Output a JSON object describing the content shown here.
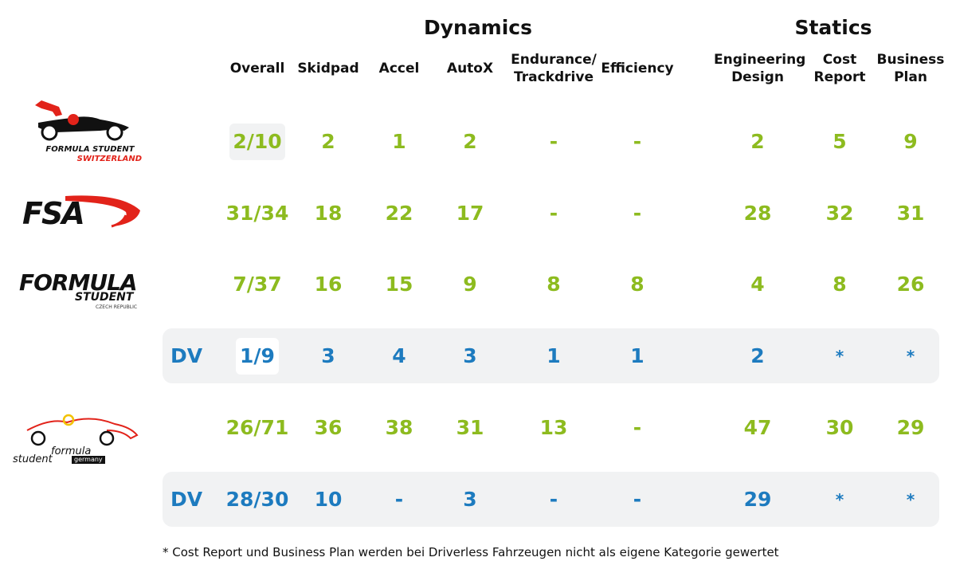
{
  "headers": {
    "dynamics": "Dynamics",
    "statics": "Statics",
    "columns": [
      "Overall",
      "Skidpad",
      "Accel",
      "AutoX",
      "Endurance/\nTrackdrive",
      "Efficiency",
      "Engineering\nDesign",
      "Cost\nReport",
      "Business\nPlan"
    ]
  },
  "rows": [
    {
      "event": "Formula Student Switzerland",
      "logo": "fs-switzerland-logo",
      "dv": "",
      "color": "green",
      "cells": [
        "2/10",
        "2",
        "1",
        "2",
        "-",
        "-",
        "2",
        "5",
        "9"
      ]
    },
    {
      "event": "FSA",
      "logo": "fsa-logo",
      "dv": "",
      "color": "green",
      "cells": [
        "31/34",
        "18",
        "22",
        "17",
        "-",
        "-",
        "28",
        "32",
        "31"
      ]
    },
    {
      "event": "Formula Student Czech Republic",
      "logo": "fs-czech-logo",
      "dv": "",
      "color": "green",
      "cells": [
        "7/37",
        "16",
        "15",
        "9",
        "8",
        "8",
        "4",
        "8",
        "26"
      ]
    },
    {
      "event": "Formula Student Czech Republic DV",
      "logo": "",
      "dv": "DV",
      "color": "blue",
      "cells": [
        "1/9",
        "3",
        "4",
        "3",
        "1",
        "1",
        "2",
        "*",
        "*"
      ]
    },
    {
      "event": "Formula Student Germany",
      "logo": "fs-germany-logo",
      "dv": "",
      "color": "green",
      "cells": [
        "26/71",
        "36",
        "38",
        "31",
        "13",
        "-",
        "47",
        "30",
        "29"
      ]
    },
    {
      "event": "Formula Student Germany DV",
      "logo": "",
      "dv": "DV",
      "color": "blue",
      "cells": [
        "28/30",
        "10",
        "-",
        "3",
        "-",
        "-",
        "29",
        "*",
        "*"
      ]
    }
  ],
  "logos": {
    "switzerland": {
      "line1": "FORMULA STUDENT",
      "line2": "SWITZERLAND"
    },
    "fsa": {
      "text": "FSA"
    },
    "czech": {
      "line1": "FORMULA",
      "line2": "STUDENT",
      "line3": "CZECH REPUBLIC"
    },
    "germany": {
      "line1": "formula",
      "line2": "student",
      "line3": "germany"
    }
  },
  "colors": {
    "green": "#8dbb1f",
    "blue": "#1d7bbf",
    "row_bg": "#f1f2f3",
    "overall_bg": "#f1f2f3"
  },
  "footnote": "* Cost Report und Business Plan werden bei Driverless Fahrzeugen nicht als eigene Kategorie gewertet"
}
